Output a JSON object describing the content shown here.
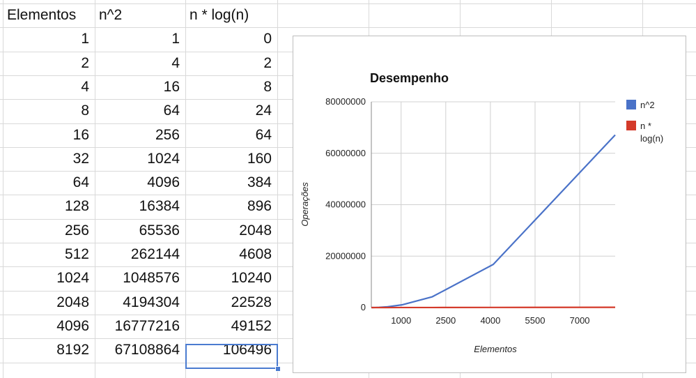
{
  "sheet": {
    "headers": [
      "Elementos",
      "n^2",
      "n * log(n)"
    ],
    "rows": [
      [
        "1",
        "1",
        "0"
      ],
      [
        "2",
        "4",
        "2"
      ],
      [
        "4",
        "16",
        "8"
      ],
      [
        "8",
        "64",
        "24"
      ],
      [
        "16",
        "256",
        "64"
      ],
      [
        "32",
        "1024",
        "160"
      ],
      [
        "64",
        "4096",
        "384"
      ],
      [
        "128",
        "16384",
        "896"
      ],
      [
        "256",
        "65536",
        "2048"
      ],
      [
        "512",
        "262144",
        "4608"
      ],
      [
        "1024",
        "1048576",
        "10240"
      ],
      [
        "2048",
        "4194304",
        "22528"
      ],
      [
        "4096",
        "16777216",
        "49152"
      ],
      [
        "8192",
        "67108864",
        "106496"
      ]
    ],
    "selected_cell": "106496"
  },
  "colors": {
    "series_n2": "#4a72c8",
    "series_nlogn": "#d43a2a",
    "grid": "#d9d9d9",
    "selection": "#4a7bd0"
  },
  "chart_data": {
    "type": "line",
    "title": "Desempenho",
    "xlabel": "Elementos",
    "ylabel": "Operações",
    "x_ticks": [
      "1000",
      "2500",
      "4000",
      "5500",
      "7000"
    ],
    "y_ticks": [
      "0",
      "20000000",
      "40000000",
      "60000000",
      "80000000"
    ],
    "xlim": [
      0,
      8192
    ],
    "ylim": [
      0,
      80000000
    ],
    "grid": true,
    "legend_position": "right",
    "x": [
      1,
      2,
      4,
      8,
      16,
      32,
      64,
      128,
      256,
      512,
      1024,
      2048,
      4096,
      8192
    ],
    "series": [
      {
        "name": "n^2",
        "values": [
          1,
          4,
          16,
          64,
          256,
          1024,
          4096,
          16384,
          65536,
          262144,
          1048576,
          4194304,
          16777216,
          67108864
        ]
      },
      {
        "name": "n * log(n)",
        "values": [
          0,
          2,
          8,
          24,
          64,
          160,
          384,
          896,
          2048,
          4608,
          10240,
          22528,
          49152,
          106496
        ]
      }
    ]
  }
}
